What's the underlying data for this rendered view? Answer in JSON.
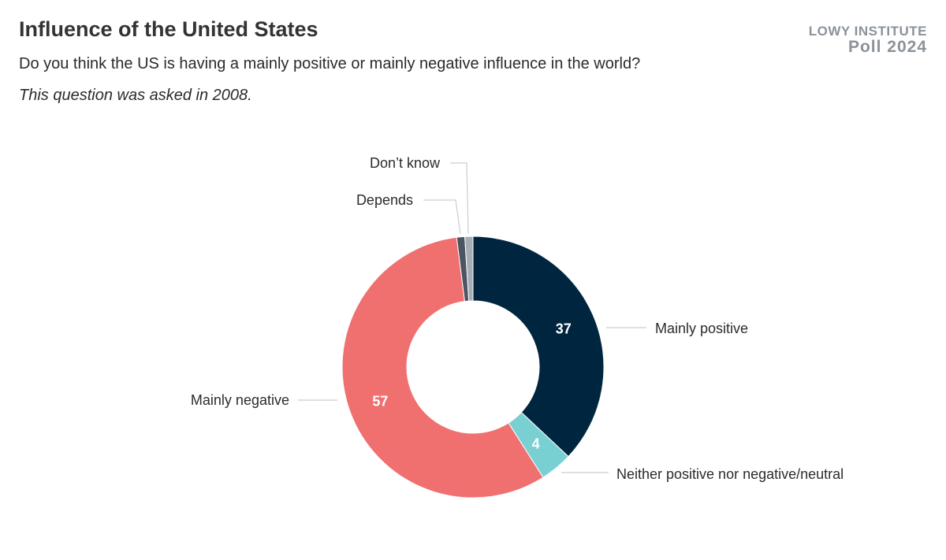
{
  "header": {
    "title": "Influence of the United States",
    "subtitle": "Do you think the US is having a mainly positive or mainly negative influence in the world?",
    "note": "This question was asked in 2008."
  },
  "brand": {
    "name": "LOWY INSTITUTE",
    "poll": "Poll 2024"
  },
  "chart_data": {
    "type": "pie",
    "donut": true,
    "categories": [
      "Mainly positive",
      "Neither positive nor negative/neutral",
      "Mainly negative",
      "Depends",
      "Don’t know"
    ],
    "values": [
      37,
      4,
      57,
      1,
      1
    ],
    "data_labels": [
      "37",
      "4",
      "57",
      "",
      ""
    ],
    "colors": [
      "#00253e",
      "#79d0d3",
      "#f07070",
      "#4b5563",
      "#a6aeb5"
    ]
  }
}
